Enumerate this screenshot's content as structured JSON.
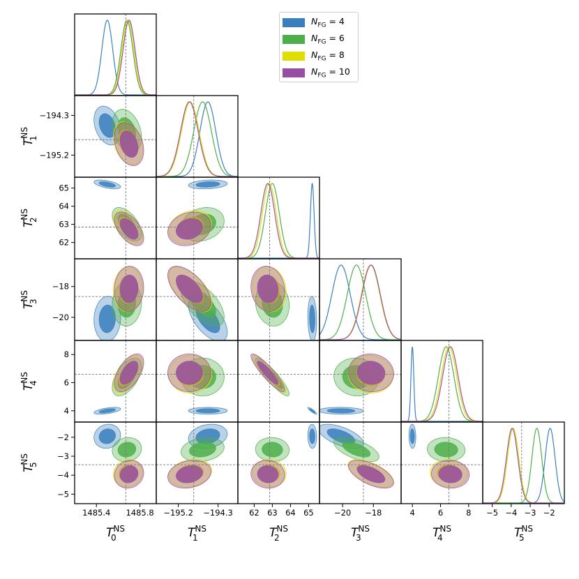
{
  "chart_data": {
    "type": "corner",
    "parameters": [
      {
        "symbol": "T",
        "subscript": "0",
        "superscript": "NS",
        "ticks": [
          "1485.4",
          "1485.8"
        ],
        "tick_values": [
          1485.4,
          1485.8
        ],
        "range": [
          1485.2,
          1485.95
        ],
        "truth": 1485.67
      },
      {
        "symbol": "T",
        "subscript": "1",
        "superscript": "NS",
        "ticks": [
          "−195.2",
          "−194.3"
        ],
        "tick_values": [
          -195.2,
          -194.3
        ],
        "range": [
          -195.7,
          -193.85
        ],
        "truth": -194.85
      },
      {
        "symbol": "T",
        "subscript": "2",
        "superscript": "NS",
        "ticks": [
          "62",
          "63",
          "64",
          "65"
        ],
        "tick_values": [
          62,
          63,
          64,
          65
        ],
        "range": [
          61.1,
          65.6
        ],
        "truth": 62.85
      },
      {
        "symbol": "T",
        "subscript": "3",
        "superscript": "NS",
        "ticks": [
          "−20",
          "−18"
        ],
        "tick_values": [
          -20,
          -18
        ],
        "range": [
          -21.5,
          -16.2
        ],
        "truth": -18.65
      },
      {
        "symbol": "T",
        "subscript": "4",
        "superscript": "NS",
        "ticks": [
          "4",
          "6",
          "8"
        ],
        "tick_values": [
          4,
          6,
          8
        ],
        "range": [
          3.2,
          9.0
        ],
        "truth": 6.6
      },
      {
        "symbol": "T",
        "subscript": "5",
        "superscript": "NS",
        "ticks": [
          "−5",
          "−4",
          "−3",
          "−2"
        ],
        "tick_values": [
          -5,
          -4,
          -3,
          -2
        ],
        "range": [
          -5.5,
          -1.2
        ],
        "truth": -3.45
      }
    ],
    "series": [
      {
        "name": "N_FG = 4",
        "color": "#3a7fbd",
        "mean": [
          1485.5,
          -194.53,
          65.2,
          -20.1,
          4.0,
          -1.95
        ],
        "sigma": [
          0.05,
          0.18,
          0.1,
          0.6,
          0.1,
          0.26
        ]
      },
      {
        "name": "N_FG = 6",
        "color": "#4daf4a",
        "mean": [
          1485.68,
          -194.65,
          63.0,
          -19.1,
          6.4,
          -2.65
        ],
        "sigma": [
          0.055,
          0.2,
          0.38,
          0.6,
          0.55,
          0.26
        ]
      },
      {
        "name": "N_FG = 8",
        "color": "#e0dd00",
        "mean": [
          1485.69,
          -194.93,
          62.83,
          -18.18,
          6.6,
          -3.9
        ],
        "sigma": [
          0.055,
          0.2,
          0.38,
          0.6,
          0.55,
          0.3
        ]
      },
      {
        "name": "N_FG = 10",
        "color": "#984ea3",
        "mean": [
          1485.7,
          -194.95,
          62.75,
          -18.15,
          6.7,
          -3.95
        ],
        "sigma": [
          0.055,
          0.2,
          0.38,
          0.6,
          0.55,
          0.3
        ]
      }
    ],
    "correlations": {
      "1_0": -0.3,
      "2_0": -0.55,
      "2_1": 0.2,
      "3_0": 0.05,
      "3_1": -0.6,
      "3_2": -0.1,
      "4_0": 0.55,
      "4_1": 0.0,
      "4_2": -0.9,
      "4_3": -0.05,
      "5_0": 0.1,
      "5_1": 0.2,
      "5_2": -0.05,
      "5_3": -0.6,
      "5_4": -0.05
    },
    "legend": {
      "position": "top-right",
      "entries": [
        "N_FG = 4",
        "N_FG = 6",
        "N_FG = 8",
        "N_FG = 10"
      ]
    },
    "grid": false
  },
  "legend": {
    "entries": [
      {
        "n": "N",
        "sub": "FG",
        "rest": " = 4"
      },
      {
        "n": "N",
        "sub": "FG",
        "rest": " = 6"
      },
      {
        "n": "N",
        "sub": "FG",
        "rest": " = 8"
      },
      {
        "n": "N",
        "sub": "FG",
        "rest": " = 10"
      }
    ]
  }
}
